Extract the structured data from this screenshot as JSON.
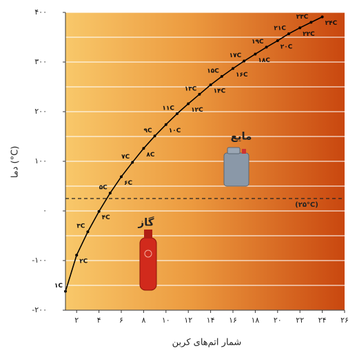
{
  "chart_data": {
    "type": "line",
    "x_label": "شمار اتم‌های کربن",
    "y_label": "دما (°C)",
    "x": [
      1,
      2,
      3,
      4,
      5,
      6,
      7,
      8,
      9,
      10,
      11,
      12,
      13,
      14,
      15,
      16,
      17,
      18,
      19,
      20,
      21,
      22,
      23,
      24
    ],
    "series": [
      {
        "color": "#000000",
        "values": [
          -162,
          -89,
          -42,
          -1,
          36,
          69,
          98,
          126,
          151,
          174,
          196,
          216,
          235,
          254,
          271,
          287,
          302,
          316,
          330,
          343,
          357,
          369,
          380,
          391
        ],
        "value_labels": [
          "۱C",
          "۲C",
          "۳C",
          "۴C",
          "۵C",
          "۶C",
          "۷C",
          "۸C",
          "۹C",
          "۱۰C",
          "۱۱C",
          "۱۲C",
          "۱۳C",
          "۱۴C",
          "۱۵C",
          "۱۶C",
          "۱۷C",
          "۱۸C",
          "۱۹C",
          "۲۰C",
          "۲۱C",
          "۲۲C",
          "۲۳C",
          "۲۴C"
        ]
      }
    ],
    "xlim": [
      1,
      26
    ],
    "ylim": [
      -200,
      400
    ],
    "xticks": [
      {
        "value": 2,
        "label": "۲"
      },
      {
        "value": 4,
        "label": "۴"
      },
      {
        "value": 6,
        "label": "۶"
      },
      {
        "value": 8,
        "label": "۸"
      },
      {
        "value": 10,
        "label": "۱۰"
      },
      {
        "value": 12,
        "label": "۱۲"
      },
      {
        "value": 14,
        "label": "۱۴"
      },
      {
        "value": 16,
        "label": "۱۶"
      },
      {
        "value": 18,
        "label": "۱۸"
      },
      {
        "value": 20,
        "label": "۲۰"
      },
      {
        "value": 22,
        "label": "۲۲"
      },
      {
        "value": 24,
        "label": "۲۴"
      },
      {
        "value": 26,
        "label": "۲۶"
      }
    ],
    "yticks": [
      {
        "value": -200,
        "label": "-۲۰۰"
      },
      {
        "value": -100,
        "label": "-۱۰۰"
      },
      {
        "value": 0,
        "label": "۰"
      },
      {
        "value": 100,
        "label": "۱۰۰"
      },
      {
        "value": 200,
        "label": "۲۰۰"
      },
      {
        "value": 300,
        "label": "۳۰۰"
      },
      {
        "value": 400,
        "label": "۴۰۰"
      }
    ],
    "minor_grid": [
      -150,
      -50,
      50,
      150,
      250,
      350
    ],
    "grid": true,
    "reference_line": {
      "value": 25,
      "label": "(۲۵°C)"
    },
    "annotations": [
      "گاز",
      "مایع"
    ]
  }
}
